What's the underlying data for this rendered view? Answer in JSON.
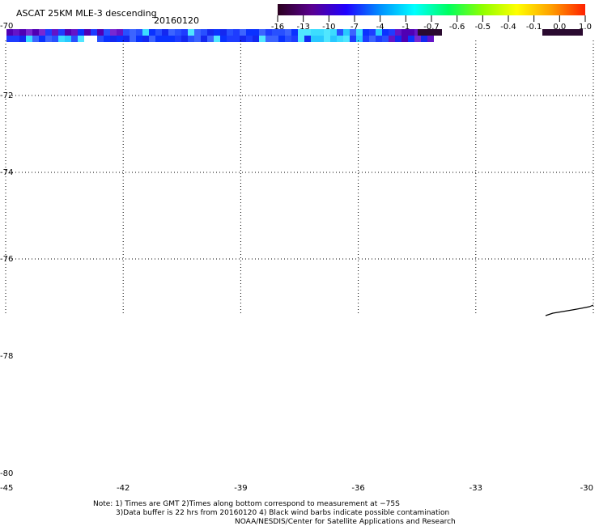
{
  "title": "ASCAT 25KM MLE-3 descending",
  "date": "20160120",
  "colorbar": {
    "tick_labels": [
      "-16",
      "-13",
      "-10",
      "-7",
      "-4",
      "-1",
      "-0.7",
      "-0.6",
      "-0.5",
      "-0.4",
      "-0.1",
      "0.0",
      "1.0"
    ],
    "gradient_colors": [
      "#2a001e",
      "#5a0090",
      "#2000ff",
      "#0090ff",
      "#00ffff",
      "#00ff60",
      "#90ff00",
      "#ffff00",
      "#ffa000",
      "#ff2000"
    ],
    "no_data_color": "#2a0a30"
  },
  "map": {
    "lat_labels": [
      "-70",
      "-72",
      "-74",
      "-76",
      "-78",
      "-80"
    ],
    "lon_labels": [
      "-45",
      "-42",
      "-39",
      "-36",
      "-33",
      "-30"
    ],
    "grid_lats": [
      -72,
      -74,
      -76
    ],
    "grid_lons": [
      -42,
      -39,
      -36,
      -33
    ]
  },
  "swath": {
    "blues": [
      "#1e3cff",
      "#2850ff",
      "#1428f0",
      "#3c64ff",
      "#0a32ff"
    ],
    "cyans": [
      "#28c8ff",
      "#50e6ff",
      "#3cdcff"
    ],
    "purples": [
      "#6414c8",
      "#5000b4",
      "#7828d2"
    ],
    "dark_patch_color": "#2a0a30"
  },
  "notes": [
    "Note: 1) Times are GMT 2)Times along bottom correspond to measurement at −75S",
    "3)Data buffer is 22 hrs from 20160120 4) Black wind barbs indicate possible contamination",
    "NOAA/NESDIS/Center for Satellite Applications and Research"
  ]
}
